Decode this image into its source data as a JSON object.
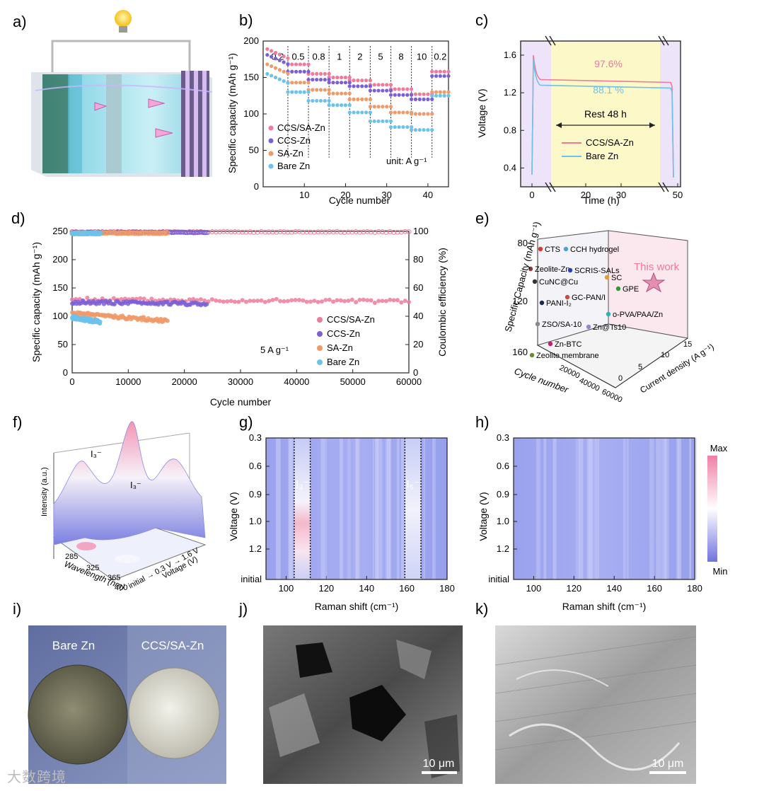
{
  "panel_labels": [
    "a)",
    "b)",
    "c)",
    "d)",
    "e)",
    "f)",
    "g)",
    "h)",
    "i)",
    "j)",
    "k)"
  ],
  "colors": {
    "ccs_sa_zn": "#ef7a9a",
    "ccs_zn": "#7b5fd6",
    "sa_zn": "#f09a6a",
    "bare_zn": "#6cc2ea",
    "rest_bg": "#fdf8c8",
    "flank_bg": "#ede4fa"
  },
  "chart_data": [
    {
      "id": "b",
      "type": "scatter",
      "title": "",
      "xlabel": "Cycle number",
      "ylabel": "Specific capacity (mAh g⁻¹)",
      "xlim": [
        0,
        45
      ],
      "ylim": [
        0,
        200
      ],
      "xticks": [
        10,
        20,
        30,
        40
      ],
      "yticks": [
        0,
        50,
        100,
        150,
        200
      ],
      "rate_labels": [
        "0.2",
        "0.5",
        "0.8",
        "1",
        "2",
        "5",
        "8",
        "10",
        "0.2"
      ],
      "rate_boundaries": [
        6,
        11,
        16,
        21,
        26,
        31,
        36,
        41
      ],
      "unit_note": "unit: A g⁻¹",
      "legend": [
        "CCS/SA-Zn",
        "CCS-Zn",
        "SA-Zn",
        "Bare Zn"
      ],
      "series": [
        {
          "name": "CCS/SA-Zn",
          "values": [
            186,
            168,
            155,
            150,
            146,
            140,
            134,
            127,
            158
          ]
        },
        {
          "name": "CCS-Zn",
          "values": [
            178,
            158,
            147,
            143,
            138,
            132,
            126,
            120,
            152
          ]
        },
        {
          "name": "SA-Zn",
          "values": [
            165,
            143,
            133,
            128,
            120,
            110,
            102,
            100,
            130
          ]
        },
        {
          "name": "Bare Zn",
          "values": [
            152,
            130,
            118,
            112,
            102,
            90,
            82,
            78,
            125
          ]
        }
      ]
    },
    {
      "id": "c",
      "type": "line",
      "xlabel": "Time (h)",
      "ylabel": "Voltage (V)",
      "xticks": [
        0,
        20,
        30,
        50
      ],
      "yticks": [
        0.4,
        0.8,
        1.2,
        1.6
      ],
      "ylim": [
        0.2,
        1.75
      ],
      "annotations": [
        "97.6%",
        "88.1 %",
        "Rest 48 h"
      ],
      "legend": [
        "CCS/SA-Zn",
        "Bare Zn"
      ],
      "series": [
        {
          "name": "CCS/SA-Zn",
          "rest_voltage": 1.32,
          "peak": 1.6
        },
        {
          "name": "Bare Zn",
          "rest_voltage": 1.26,
          "peak": 1.55
        }
      ]
    },
    {
      "id": "d",
      "type": "scatter",
      "xlabel": "Cycle number",
      "ylabel": "Specific capacity (mAh g⁻¹)",
      "y2label": "Coulombic efficiency (%)",
      "xlim": [
        0,
        60000
      ],
      "ylim": [
        0,
        250
      ],
      "y2lim": [
        0,
        100
      ],
      "xticks": [
        0,
        10000,
        20000,
        30000,
        40000,
        50000,
        60000
      ],
      "yticks": [
        0,
        50,
        100,
        150,
        200,
        250
      ],
      "y2ticks": [
        0,
        20,
        40,
        60,
        80,
        100
      ],
      "note": "5 A g⁻¹",
      "legend": [
        "CCS/SA-Zn",
        "CCS-Zn",
        "SA-Zn",
        "Bare Zn"
      ],
      "series": [
        {
          "name": "CCS/SA-Zn",
          "end_cycle": 60000,
          "capacity_start": 130,
          "capacity_end": 126,
          "ce": 99.6
        },
        {
          "name": "CCS-Zn",
          "end_cycle": 24000,
          "capacity_start": 125,
          "capacity_end": 122,
          "ce": 99.3
        },
        {
          "name": "SA-Zn",
          "end_cycle": 17000,
          "capacity_start": 105,
          "capacity_end": 92,
          "ce": 98.8
        },
        {
          "name": "Bare Zn",
          "end_cycle": 5000,
          "capacity_start": 98,
          "capacity_end": 90,
          "ce": 98.5
        }
      ]
    },
    {
      "id": "e",
      "type": "scatter",
      "xlabel": "Cycle number",
      "ylabel": "Specific Capacity (mAh g⁻¹)",
      "zlabel": "Current density (A g⁻¹)",
      "yticks": [
        80,
        120,
        160
      ],
      "xticks": [
        20000,
        40000,
        60000
      ],
      "zticks": [
        0,
        5,
        10,
        15
      ],
      "points": [
        "CTS",
        "CCH hydrogel",
        "Zeolite-Zn",
        "SCRIS-SALs",
        "SC",
        "GPE",
        "CuNC@Cu",
        "GC-PAN/I",
        "PANI-I₂",
        "o-PVA/PAA/Zn",
        "Zn@Ts10",
        "ZSO/SA-10",
        "Zn-BTC",
        "Zeolite membrane"
      ],
      "highlight": "This work"
    },
    {
      "id": "f",
      "type": "area",
      "zlabel": "Intensity (a.u.)",
      "xlabel": "Wavelength (nm)",
      "ylabel": "Voltage (V)",
      "xticks": [
        285,
        325,
        365,
        400
      ],
      "voltage_axis": "initial → 0.3 V → 1.6 V",
      "peaks": [
        "I₃⁻",
        "I₃⁻"
      ]
    },
    {
      "id": "g",
      "type": "heatmap",
      "xlabel": "Raman shift (cm⁻¹)",
      "ylabel": "Voltage (V)",
      "xlim": [
        90,
        180
      ],
      "xticks": [
        100,
        120,
        140,
        160,
        180
      ],
      "yticks": [
        "0.3",
        "0.6",
        "0.9",
        "1.0",
        "1.2",
        "initial"
      ],
      "bands": [
        {
          "label": "I₃⁻",
          "from": 104,
          "to": 112
        },
        {
          "label": "I₅⁻",
          "from": 159,
          "to": 167
        }
      ]
    },
    {
      "id": "h",
      "type": "heatmap",
      "xlabel": "Raman shift (cm⁻¹)",
      "ylabel": "Voltage (V)",
      "xlim": [
        90,
        180
      ],
      "xticks": [
        100,
        120,
        140,
        160,
        180
      ],
      "yticks": [
        "0.3",
        "0.6",
        "0.9",
        "1.0",
        "1.2",
        "initial"
      ],
      "colorbar": [
        "Max",
        "Min"
      ]
    }
  ],
  "photo_labels": [
    "Bare Zn",
    "CCS/SA-Zn"
  ],
  "scale_bars": [
    "10 μm",
    "10 μm"
  ],
  "watermark": "大数跨境"
}
